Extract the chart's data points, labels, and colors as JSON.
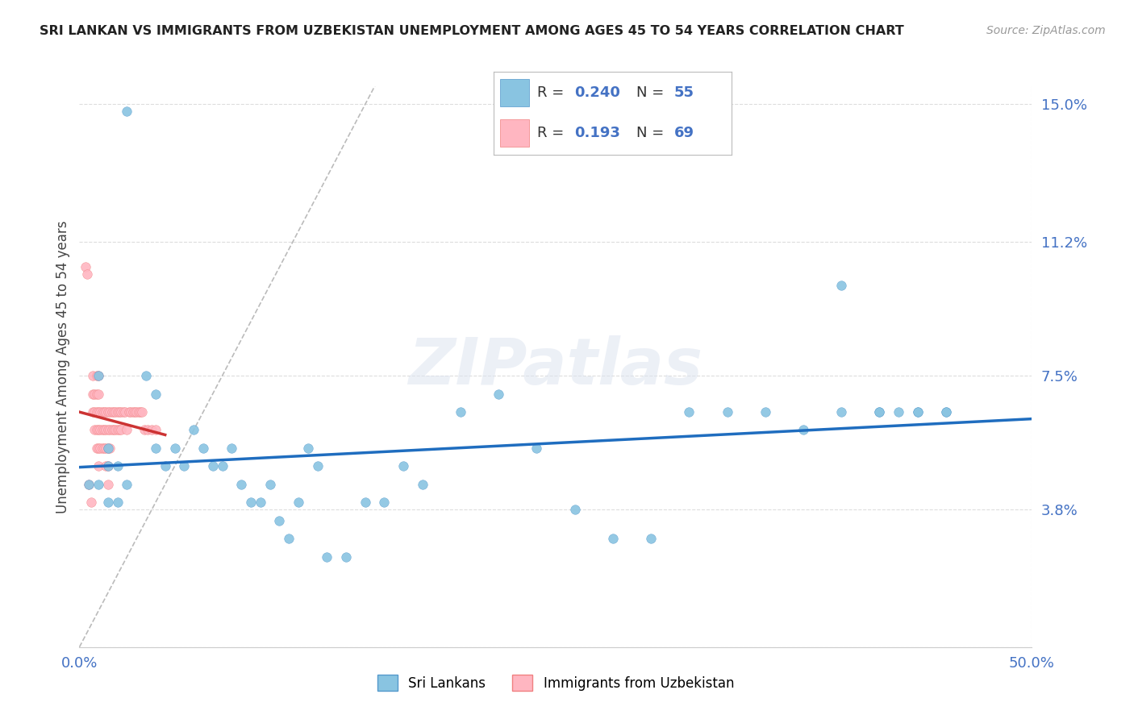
{
  "title": "SRI LANKAN VS IMMIGRANTS FROM UZBEKISTAN UNEMPLOYMENT AMONG AGES 45 TO 54 YEARS CORRELATION CHART",
  "source": "Source: ZipAtlas.com",
  "ylabel_label": "Unemployment Among Ages 45 to 54 years",
  "x_min": 0.0,
  "x_max": 0.5,
  "y_min": 0.0,
  "y_max": 0.155,
  "y_ticks_right": [
    0.0,
    0.038,
    0.075,
    0.112,
    0.15
  ],
  "y_tick_labels_right": [
    "",
    "3.8%",
    "7.5%",
    "11.2%",
    "15.0%"
  ],
  "sri_lanka_color": "#89c4e1",
  "uzbekistan_color": "#ffb6c1",
  "trendline_sri_color": "#1f6dbf",
  "trendline_uzb_color": "#cc3333",
  "diagonal_color": "#bbbbbb",
  "watermark": "ZIPatlas",
  "background_color": "#ffffff",
  "sri_lankans_x": [
    0.025,
    0.01,
    0.015,
    0.005,
    0.015,
    0.02,
    0.015,
    0.01,
    0.02,
    0.025,
    0.035,
    0.04,
    0.04,
    0.045,
    0.05,
    0.055,
    0.06,
    0.065,
    0.07,
    0.075,
    0.08,
    0.085,
    0.09,
    0.095,
    0.1,
    0.105,
    0.11,
    0.115,
    0.12,
    0.125,
    0.13,
    0.14,
    0.15,
    0.16,
    0.17,
    0.18,
    0.2,
    0.22,
    0.24,
    0.26,
    0.28,
    0.3,
    0.32,
    0.34,
    0.36,
    0.38,
    0.4,
    0.42,
    0.43,
    0.44,
    0.455,
    0.455,
    0.4,
    0.42,
    0.44
  ],
  "sri_lankans_y": [
    0.148,
    0.075,
    0.055,
    0.045,
    0.04,
    0.04,
    0.05,
    0.045,
    0.05,
    0.045,
    0.075,
    0.07,
    0.055,
    0.05,
    0.055,
    0.05,
    0.06,
    0.055,
    0.05,
    0.05,
    0.055,
    0.045,
    0.04,
    0.04,
    0.045,
    0.035,
    0.03,
    0.04,
    0.055,
    0.05,
    0.025,
    0.025,
    0.04,
    0.04,
    0.05,
    0.045,
    0.065,
    0.07,
    0.055,
    0.038,
    0.03,
    0.03,
    0.065,
    0.065,
    0.065,
    0.06,
    0.065,
    0.065,
    0.065,
    0.065,
    0.065,
    0.065,
    0.1,
    0.065,
    0.065
  ],
  "uzbekistan_x": [
    0.003,
    0.004,
    0.005,
    0.006,
    0.007,
    0.007,
    0.007,
    0.008,
    0.008,
    0.008,
    0.009,
    0.009,
    0.009,
    0.009,
    0.009,
    0.01,
    0.01,
    0.01,
    0.01,
    0.01,
    0.01,
    0.011,
    0.011,
    0.011,
    0.012,
    0.012,
    0.012,
    0.013,
    0.013,
    0.013,
    0.014,
    0.014,
    0.014,
    0.014,
    0.015,
    0.015,
    0.015,
    0.015,
    0.015,
    0.016,
    0.016,
    0.016,
    0.017,
    0.017,
    0.018,
    0.018,
    0.019,
    0.019,
    0.02,
    0.02,
    0.021,
    0.021,
    0.022,
    0.022,
    0.023,
    0.024,
    0.025,
    0.026,
    0.027,
    0.028,
    0.029,
    0.03,
    0.031,
    0.032,
    0.033,
    0.034,
    0.036,
    0.038,
    0.04
  ],
  "uzbekistan_y": [
    0.105,
    0.103,
    0.045,
    0.04,
    0.075,
    0.07,
    0.065,
    0.07,
    0.065,
    0.06,
    0.075,
    0.07,
    0.065,
    0.06,
    0.055,
    0.075,
    0.07,
    0.065,
    0.06,
    0.055,
    0.05,
    0.065,
    0.06,
    0.055,
    0.065,
    0.06,
    0.055,
    0.065,
    0.06,
    0.055,
    0.065,
    0.06,
    0.055,
    0.05,
    0.065,
    0.06,
    0.055,
    0.05,
    0.045,
    0.065,
    0.06,
    0.055,
    0.065,
    0.06,
    0.065,
    0.06,
    0.065,
    0.06,
    0.065,
    0.06,
    0.065,
    0.06,
    0.065,
    0.06,
    0.065,
    0.065,
    0.06,
    0.065,
    0.065,
    0.065,
    0.065,
    0.065,
    0.065,
    0.065,
    0.065,
    0.06,
    0.06,
    0.06,
    0.06
  ]
}
